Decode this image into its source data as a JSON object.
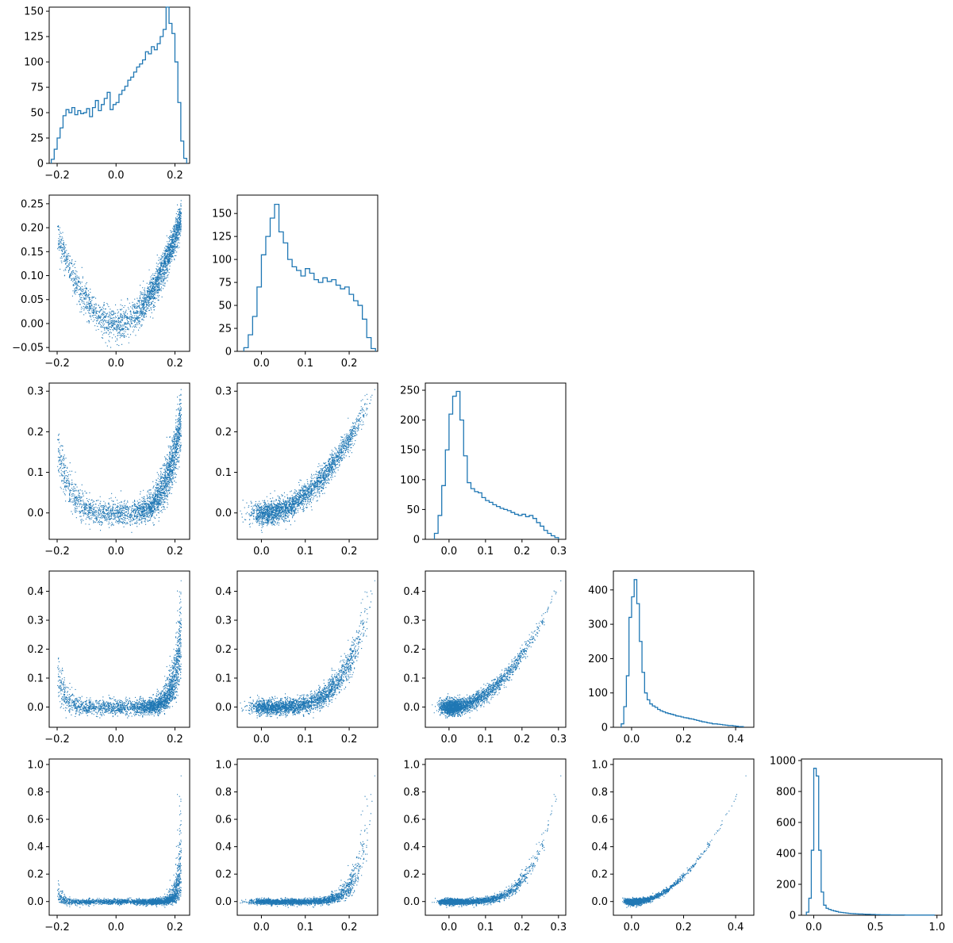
{
  "chart_data": {
    "type": "corner-plot",
    "series_color": "#1f77b4",
    "num_variables": 5,
    "tick_labels": {
      "v0": [
        "−0.2",
        "0.0",
        "0.2"
      ],
      "v1": [
        "0.0",
        "0.1",
        "0.2"
      ],
      "v2": [
        "0.0",
        "0.1",
        "0.2",
        "0.3"
      ],
      "v3": [
        "0.0",
        "0.1",
        "0.2",
        "0.3",
        "0.4"
      ],
      "v3_diag": [
        "0.0",
        "0.2",
        "0.4"
      ],
      "v1_y": [
        "−0.05",
        "0.00",
        "0.05",
        "0.10",
        "0.15",
        "0.20",
        "0.25"
      ],
      "v4_y": [
        "0.0",
        "0.2",
        "0.4",
        "0.6",
        "0.8",
        "1.0"
      ],
      "v4_x": [
        "0.0",
        "0.5",
        "1.0"
      ]
    },
    "histograms": [
      {
        "variable": 0,
        "xlim": [
          -0.227,
          0.25
        ],
        "ylim": [
          0,
          154
        ],
        "y_ticks": [
          0,
          25,
          50,
          75,
          100,
          125,
          150
        ],
        "bins": [
          -0.22,
          -0.21,
          -0.2,
          -0.19,
          -0.18,
          -0.17,
          -0.16,
          -0.15,
          -0.14,
          -0.13,
          -0.12,
          -0.11,
          -0.1,
          -0.09,
          -0.08,
          -0.07,
          -0.06,
          -0.05,
          -0.04,
          -0.03,
          -0.02,
          -0.01,
          0.0,
          0.01,
          0.02,
          0.03,
          0.04,
          0.05,
          0.06,
          0.07,
          0.08,
          0.09,
          0.1,
          0.11,
          0.12,
          0.13,
          0.14,
          0.15,
          0.16,
          0.17,
          0.18,
          0.19,
          0.2,
          0.21,
          0.22,
          0.23
        ],
        "counts": [
          4,
          14,
          25,
          35,
          47,
          53,
          50,
          55,
          48,
          52,
          49,
          50,
          54,
          46,
          55,
          62,
          52,
          58,
          64,
          70,
          53,
          58,
          60,
          68,
          72,
          76,
          82,
          85,
          90,
          95,
          98,
          102,
          110,
          108,
          115,
          112,
          118,
          125,
          132,
          154,
          138,
          128,
          100,
          60,
          22,
          5
        ]
      },
      {
        "variable": 1,
        "xlim": [
          -0.055,
          0.265
        ],
        "ylim": [
          0,
          170
        ],
        "y_ticks": [
          0,
          25,
          50,
          75,
          100,
          125,
          150
        ],
        "bins": [
          -0.04,
          -0.03,
          -0.02,
          -0.01,
          0.0,
          0.01,
          0.02,
          0.03,
          0.04,
          0.05,
          0.06,
          0.07,
          0.08,
          0.09,
          0.1,
          0.11,
          0.12,
          0.13,
          0.14,
          0.15,
          0.16,
          0.17,
          0.18,
          0.19,
          0.2,
          0.21,
          0.22,
          0.23,
          0.24,
          0.25
        ],
        "counts": [
          4,
          18,
          38,
          70,
          105,
          125,
          145,
          160,
          130,
          118,
          100,
          92,
          88,
          82,
          90,
          85,
          78,
          75,
          80,
          76,
          78,
          72,
          68,
          70,
          62,
          55,
          50,
          35,
          15,
          3
        ]
      },
      {
        "variable": 2,
        "xlim": [
          -0.065,
          0.32
        ],
        "ylim": [
          0,
          262
        ],
        "y_ticks": [
          0,
          50,
          100,
          150,
          200,
          250
        ],
        "bins": [
          -0.04,
          -0.03,
          -0.02,
          -0.01,
          0.0,
          0.01,
          0.02,
          0.03,
          0.04,
          0.05,
          0.06,
          0.07,
          0.08,
          0.09,
          0.1,
          0.11,
          0.12,
          0.13,
          0.14,
          0.15,
          0.16,
          0.17,
          0.18,
          0.19,
          0.2,
          0.21,
          0.22,
          0.23,
          0.24,
          0.25,
          0.26,
          0.27,
          0.28,
          0.29
        ],
        "counts": [
          10,
          40,
          90,
          150,
          210,
          240,
          248,
          200,
          140,
          95,
          85,
          80,
          78,
          70,
          65,
          62,
          58,
          55,
          52,
          50,
          48,
          45,
          42,
          40,
          42,
          38,
          40,
          35,
          28,
          22,
          15,
          10,
          6,
          3
        ]
      },
      {
        "variable": 3,
        "xlim": [
          -0.07,
          0.47
        ],
        "ylim": [
          0,
          455
        ],
        "y_ticks": [
          0,
          100,
          200,
          300,
          400
        ],
        "bins": [
          -0.04,
          -0.03,
          -0.02,
          -0.01,
          0.0,
          0.01,
          0.02,
          0.03,
          0.04,
          0.05,
          0.06,
          0.07,
          0.08,
          0.09,
          0.1,
          0.11,
          0.12,
          0.13,
          0.14,
          0.15,
          0.16,
          0.17,
          0.18,
          0.19,
          0.2,
          0.21,
          0.22,
          0.23,
          0.24,
          0.25,
          0.26,
          0.27,
          0.28,
          0.29,
          0.3,
          0.31,
          0.32,
          0.33,
          0.34,
          0.35,
          0.36,
          0.37,
          0.38,
          0.39,
          0.4,
          0.41,
          0.42
        ],
        "counts": [
          10,
          60,
          150,
          320,
          380,
          430,
          360,
          250,
          160,
          100,
          80,
          68,
          62,
          58,
          52,
          48,
          45,
          42,
          40,
          38,
          36,
          33,
          32,
          30,
          28,
          27,
          25,
          24,
          22,
          20,
          18,
          16,
          15,
          13,
          12,
          10,
          10,
          9,
          8,
          7,
          6,
          5,
          5,
          4,
          3,
          2,
          2
        ]
      },
      {
        "variable": 4,
        "xlim": [
          -0.1,
          1.04
        ],
        "ylim": [
          0,
          1010
        ],
        "y_ticks": [
          0,
          200,
          400,
          600,
          800,
          1000
        ],
        "bins": [
          -0.06,
          -0.04,
          -0.02,
          0.0,
          0.02,
          0.04,
          0.06,
          0.08,
          0.1,
          0.12,
          0.14,
          0.16,
          0.18,
          0.2,
          0.22,
          0.24,
          0.26,
          0.28,
          0.3,
          0.32,
          0.34,
          0.36,
          0.38,
          0.4,
          0.42,
          0.44,
          0.46,
          0.48,
          0.5,
          0.52,
          0.54,
          0.56,
          0.58,
          0.6,
          0.62,
          0.64,
          0.66,
          0.68,
          0.7,
          0.72,
          0.74,
          0.76,
          0.78,
          0.8,
          0.82,
          0.84,
          0.86,
          0.88,
          0.9,
          0.92,
          0.94,
          0.96
        ],
        "counts": [
          20,
          110,
          420,
          950,
          900,
          420,
          150,
          65,
          45,
          38,
          32,
          28,
          24,
          20,
          18,
          16,
          14,
          12,
          11,
          10,
          9,
          8,
          8,
          7,
          6,
          6,
          5,
          5,
          4,
          4,
          3,
          3,
          3,
          3,
          2,
          2,
          2,
          2,
          2,
          2,
          1,
          1,
          1,
          1,
          1,
          1,
          1,
          1,
          1,
          1,
          1,
          1
        ]
      }
    ],
    "scatter_panels": [
      {
        "row": 1,
        "col": 0,
        "x_var": 0,
        "y_var": 1,
        "xlim": [
          -0.227,
          0.25
        ],
        "ylim": [
          -0.058,
          0.268
        ],
        "y_ticks": [
          -0.05,
          0.0,
          0.05,
          0.1,
          0.15,
          0.2,
          0.25
        ]
      },
      {
        "row": 2,
        "col": 0,
        "x_var": 0,
        "y_var": 2,
        "xlim": [
          -0.227,
          0.25
        ],
        "ylim": [
          -0.065,
          0.32
        ],
        "y_ticks": [
          0.0,
          0.1,
          0.2,
          0.3
        ]
      },
      {
        "row": 2,
        "col": 1,
        "x_var": 1,
        "y_var": 2,
        "xlim": [
          -0.055,
          0.265
        ],
        "ylim": [
          -0.065,
          0.32
        ],
        "y_ticks": [
          0.0,
          0.1,
          0.2,
          0.3
        ]
      },
      {
        "row": 3,
        "col": 0,
        "x_var": 0,
        "y_var": 3,
        "xlim": [
          -0.227,
          0.25
        ],
        "ylim": [
          -0.07,
          0.47
        ],
        "y_ticks": [
          0.0,
          0.1,
          0.2,
          0.3,
          0.4
        ]
      },
      {
        "row": 3,
        "col": 1,
        "x_var": 1,
        "y_var": 3,
        "xlim": [
          -0.055,
          0.265
        ],
        "ylim": [
          -0.07,
          0.47
        ],
        "y_ticks": [
          0.0,
          0.1,
          0.2,
          0.3,
          0.4
        ]
      },
      {
        "row": 3,
        "col": 2,
        "x_var": 2,
        "y_var": 3,
        "xlim": [
          -0.065,
          0.32
        ],
        "ylim": [
          -0.07,
          0.47
        ],
        "y_ticks": [
          0.0,
          0.1,
          0.2,
          0.3,
          0.4
        ]
      },
      {
        "row": 4,
        "col": 0,
        "x_var": 0,
        "y_var": 4,
        "xlim": [
          -0.227,
          0.25
        ],
        "ylim": [
          -0.1,
          1.04
        ],
        "y_ticks": [
          0.0,
          0.2,
          0.4,
          0.6,
          0.8,
          1.0
        ]
      },
      {
        "row": 4,
        "col": 1,
        "x_var": 1,
        "y_var": 4,
        "xlim": [
          -0.055,
          0.265
        ],
        "ylim": [
          -0.1,
          1.04
        ],
        "y_ticks": [
          0.0,
          0.2,
          0.4,
          0.6,
          0.8,
          1.0
        ]
      },
      {
        "row": 4,
        "col": 2,
        "x_var": 2,
        "y_var": 4,
        "xlim": [
          -0.065,
          0.32
        ],
        "ylim": [
          -0.1,
          1.04
        ],
        "y_ticks": [
          0.0,
          0.2,
          0.4,
          0.6,
          0.8,
          1.0
        ]
      },
      {
        "row": 4,
        "col": 3,
        "x_var": 3,
        "y_var": 4,
        "xlim": [
          -0.07,
          0.47
        ],
        "ylim": [
          -0.1,
          1.04
        ],
        "y_ticks": [
          0.0,
          0.2,
          0.4,
          0.6,
          0.8,
          1.0
        ]
      }
    ],
    "variable_x_ticks": [
      [
        -0.2,
        0.0,
        0.2
      ],
      [
        0.0,
        0.1,
        0.2
      ],
      [
        0.0,
        0.1,
        0.2,
        0.3
      ],
      [
        0.0,
        0.2,
        0.4
      ],
      [
        0.0,
        0.5,
        1.0
      ]
    ],
    "scatter_x_ticks": [
      [
        -0.2,
        0.0,
        0.2
      ],
      [
        0.0,
        0.1,
        0.2
      ],
      [
        0.0,
        0.1,
        0.2,
        0.3
      ],
      [
        0.0,
        0.2,
        0.4
      ]
    ],
    "scatter_model": "samples from a curved (banana-shaped) correlated distribution; each variable ≈ square of the previous plus noise"
  }
}
